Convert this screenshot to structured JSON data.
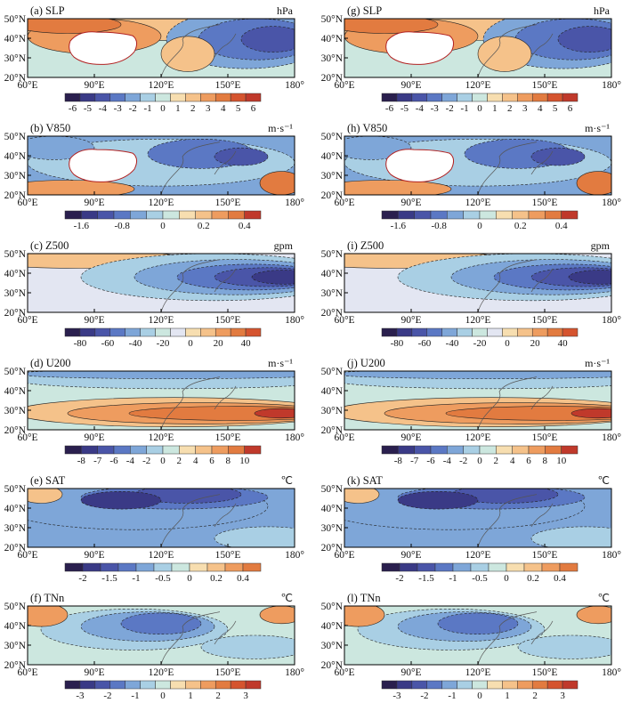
{
  "chart_data": [
    {
      "id": "a",
      "label": "(a) SLP",
      "unit": "hPa",
      "type": "heatmap",
      "xlabels": [
        "60°E",
        "90°E",
        "120°E",
        "150°E",
        "180°"
      ],
      "ylabels": [
        "20°N",
        "30°N",
        "40°N",
        "50°N"
      ],
      "cbar_labels": [
        "-6",
        "-5",
        "-4",
        "-3",
        "-2",
        "-1",
        "0",
        "1",
        "2",
        "3",
        "4",
        "5",
        "6"
      ],
      "cbar_mode": "labels_between",
      "cbar_colors": [
        "#2a1f4e",
        "#3a3a86",
        "#4a55a8",
        "#5b78c4",
        "#7ea6d8",
        "#a9cfe4",
        "#cce7df",
        "#f7deb0",
        "#f5c28a",
        "#ee9c5f",
        "#e27b40",
        "#d5542f",
        "#c0392b"
      ],
      "plume": "slp",
      "mask": true
    },
    {
      "id": "g",
      "label": "(g) SLP",
      "unit": "hPa",
      "type": "heatmap",
      "xlabels": [
        "60°E",
        "90°E",
        "120°E",
        "150°E",
        "180°"
      ],
      "ylabels": [
        "20°N",
        "30°N",
        "40°N",
        "50°N"
      ],
      "cbar_labels": [
        "-6",
        "-5",
        "-4",
        "-3",
        "-2",
        "-1",
        "0",
        "1",
        "2",
        "3",
        "4",
        "5",
        "6"
      ],
      "cbar_mode": "labels_between",
      "cbar_colors": [
        "#2a1f4e",
        "#3a3a86",
        "#4a55a8",
        "#5b78c4",
        "#7ea6d8",
        "#a9cfe4",
        "#cce7df",
        "#f7deb0",
        "#f5c28a",
        "#ee9c5f",
        "#e27b40",
        "#d5542f",
        "#c0392b"
      ],
      "plume": "slp",
      "mask": true
    },
    {
      "id": "b",
      "label": "(b) V850",
      "unit": "m·s⁻¹",
      "type": "heatmap",
      "xlabels": [
        "60°E",
        "90°E",
        "120°E",
        "150°E",
        "180°"
      ],
      "ylabels": [
        "20°N",
        "30°N",
        "40°N",
        "50°N"
      ],
      "cbar_labels": [
        "-1.6",
        "-0.8",
        "0",
        "0.2",
        "0.4"
      ],
      "cbar_mode": "labels_spaced",
      "cbar_colors": [
        "#2a1f4e",
        "#3a3a86",
        "#4a55a8",
        "#5b78c4",
        "#7ea6d8",
        "#a9cfe4",
        "#cce7df",
        "#f7deb0",
        "#f5c28a",
        "#ee9c5f",
        "#e27b40",
        "#c0392b"
      ],
      "plume": "v850",
      "mask": true
    },
    {
      "id": "h",
      "label": "(h) V850",
      "unit": "m·s⁻¹",
      "type": "heatmap",
      "xlabels": [
        "60°E",
        "90°E",
        "120°E",
        "150°E",
        "180°"
      ],
      "ylabels": [
        "20°N",
        "30°N",
        "40°N",
        "50°N"
      ],
      "cbar_labels": [
        "-1.6",
        "-0.8",
        "0",
        "0.2",
        "0.4"
      ],
      "cbar_mode": "labels_spaced",
      "cbar_colors": [
        "#2a1f4e",
        "#3a3a86",
        "#4a55a8",
        "#5b78c4",
        "#7ea6d8",
        "#a9cfe4",
        "#cce7df",
        "#f7deb0",
        "#f5c28a",
        "#ee9c5f",
        "#e27b40",
        "#c0392b"
      ],
      "plume": "v850",
      "mask": true
    },
    {
      "id": "c",
      "label": "(c) Z500",
      "unit": "gpm",
      "type": "heatmap",
      "xlabels": [
        "60°E",
        "90°E",
        "120°E",
        "150°E",
        "180°"
      ],
      "ylabels": [
        "20°N",
        "30°N",
        "40°N",
        "50°N"
      ],
      "cbar_labels": [
        "-80",
        "-60",
        "-40",
        "-20",
        "0",
        "20",
        "40"
      ],
      "cbar_mode": "labels_spaced",
      "cbar_colors": [
        "#2a1f4e",
        "#3a3a86",
        "#4a55a8",
        "#5b78c4",
        "#7ea6d8",
        "#a9cfe4",
        "#cce7df",
        "#e3e6f2",
        "#f7deb0",
        "#f5c28a",
        "#ee9c5f",
        "#e27b40",
        "#d5542f"
      ],
      "plume": "z500",
      "mask": false
    },
    {
      "id": "i",
      "label": "(i) Z500",
      "unit": "gpm",
      "type": "heatmap",
      "xlabels": [
        "60°E",
        "90°E",
        "120°E",
        "150°E",
        "180°"
      ],
      "ylabels": [
        "20°N",
        "30°N",
        "40°N",
        "50°N"
      ],
      "cbar_labels": [
        "-80",
        "-60",
        "-40",
        "-20",
        "0",
        "20",
        "40"
      ],
      "cbar_mode": "labels_spaced",
      "cbar_colors": [
        "#2a1f4e",
        "#3a3a86",
        "#4a55a8",
        "#5b78c4",
        "#7ea6d8",
        "#a9cfe4",
        "#cce7df",
        "#e3e6f2",
        "#f7deb0",
        "#f5c28a",
        "#ee9c5f",
        "#e27b40",
        "#d5542f"
      ],
      "plume": "z500",
      "mask": false
    },
    {
      "id": "d",
      "label": "(d) U200",
      "unit": "m·s⁻¹",
      "type": "heatmap",
      "xlabels": [
        "60°E",
        "90°E",
        "120°E",
        "150°E",
        "180°"
      ],
      "ylabels": [
        "20°N",
        "30°N",
        "40°N",
        "50°N"
      ],
      "cbar_labels": [
        "-8",
        "-7",
        "-6",
        "-4",
        "-2",
        "0",
        "2",
        "4",
        "6",
        "8",
        "10"
      ],
      "cbar_mode": "labels_between",
      "cbar_colors": [
        "#2a1f4e",
        "#3a3a86",
        "#4a55a8",
        "#5b78c4",
        "#7ea6d8",
        "#a9cfe4",
        "#cce7df",
        "#f7deb0",
        "#f5c28a",
        "#ee9c5f",
        "#e27b40",
        "#c0392b"
      ],
      "plume": "u200",
      "mask": false
    },
    {
      "id": "j",
      "label": "(j) U200",
      "unit": "m·s⁻¹",
      "type": "heatmap",
      "xlabels": [
        "60°E",
        "90°E",
        "120°E",
        "150°E",
        "180°"
      ],
      "ylabels": [
        "20°N",
        "30°N",
        "40°N",
        "50°N"
      ],
      "cbar_labels": [
        "-8",
        "-7",
        "-6",
        "-4",
        "-2",
        "0",
        "2",
        "4",
        "6",
        "8",
        "10"
      ],
      "cbar_mode": "labels_between",
      "cbar_colors": [
        "#2a1f4e",
        "#3a3a86",
        "#4a55a8",
        "#5b78c4",
        "#7ea6d8",
        "#a9cfe4",
        "#cce7df",
        "#f7deb0",
        "#f5c28a",
        "#ee9c5f",
        "#e27b40",
        "#c0392b"
      ],
      "plume": "u200",
      "mask": false
    },
    {
      "id": "e",
      "label": "(e) SAT",
      "unit": "℃",
      "type": "heatmap",
      "xlabels": [
        "60°E",
        "90°E",
        "120°E",
        "150°E",
        "180°"
      ],
      "ylabels": [
        "20°N",
        "30°N",
        "40°N",
        "50°N"
      ],
      "cbar_labels": [
        "-2",
        "-1.5",
        "-1",
        "-0.5",
        "0",
        "0.2",
        "0.4"
      ],
      "cbar_mode": "labels_spaced",
      "cbar_colors": [
        "#2a1f4e",
        "#3a3a86",
        "#4a55a8",
        "#5b78c4",
        "#7ea6d8",
        "#a9cfe4",
        "#cce7df",
        "#f7deb0",
        "#f5c28a",
        "#ee9c5f",
        "#e27b40"
      ],
      "plume": "sat",
      "mask": false
    },
    {
      "id": "k",
      "label": "(k) SAT",
      "unit": "℃",
      "type": "heatmap",
      "xlabels": [
        "60°E",
        "90°E",
        "120°E",
        "150°E",
        "180°"
      ],
      "ylabels": [
        "20°N",
        "30°N",
        "40°N",
        "50°N"
      ],
      "cbar_labels": [
        "-2",
        "-1.5",
        "-1",
        "-0.5",
        "0",
        "0.2",
        "0.4"
      ],
      "cbar_mode": "labels_spaced",
      "cbar_colors": [
        "#2a1f4e",
        "#3a3a86",
        "#4a55a8",
        "#5b78c4",
        "#7ea6d8",
        "#a9cfe4",
        "#cce7df",
        "#f7deb0",
        "#f5c28a",
        "#ee9c5f",
        "#e27b40"
      ],
      "plume": "sat",
      "mask": false
    },
    {
      "id": "f",
      "label": "(f) TNn",
      "unit": "℃",
      "type": "heatmap",
      "xlabels": [
        "60°E",
        "90°E",
        "120°E",
        "150°E",
        "180°"
      ],
      "ylabels": [
        "20°N",
        "30°N",
        "40°N",
        "50°N"
      ],
      "cbar_labels": [
        "-3",
        "-2",
        "-1",
        "0",
        "1",
        "2",
        "3"
      ],
      "cbar_mode": "labels_spaced",
      "cbar_colors": [
        "#2a1f4e",
        "#3a3a86",
        "#4a55a8",
        "#5b78c4",
        "#7ea6d8",
        "#a9cfe4",
        "#cce7df",
        "#f7deb0",
        "#f5c28a",
        "#ee9c5f",
        "#e27b40",
        "#d5542f",
        "#c0392b"
      ],
      "plume": "tnn",
      "mask": false
    },
    {
      "id": "l",
      "label": "(l) TNn",
      "unit": "℃",
      "type": "heatmap",
      "xlabels": [
        "60°E",
        "90°E",
        "120°E",
        "150°E",
        "180°"
      ],
      "ylabels": [
        "20°N",
        "30°N",
        "40°N",
        "50°N"
      ],
      "cbar_labels": [
        "-3",
        "-2",
        "-1",
        "0",
        "1",
        "2",
        "3"
      ],
      "cbar_mode": "labels_spaced",
      "cbar_colors": [
        "#2a1f4e",
        "#3a3a86",
        "#4a55a8",
        "#5b78c4",
        "#7ea6d8",
        "#a9cfe4",
        "#cce7df",
        "#f7deb0",
        "#f5c28a",
        "#ee9c5f",
        "#e27b40",
        "#d5542f",
        "#c0392b"
      ],
      "plume": "tnn",
      "mask": false
    }
  ]
}
